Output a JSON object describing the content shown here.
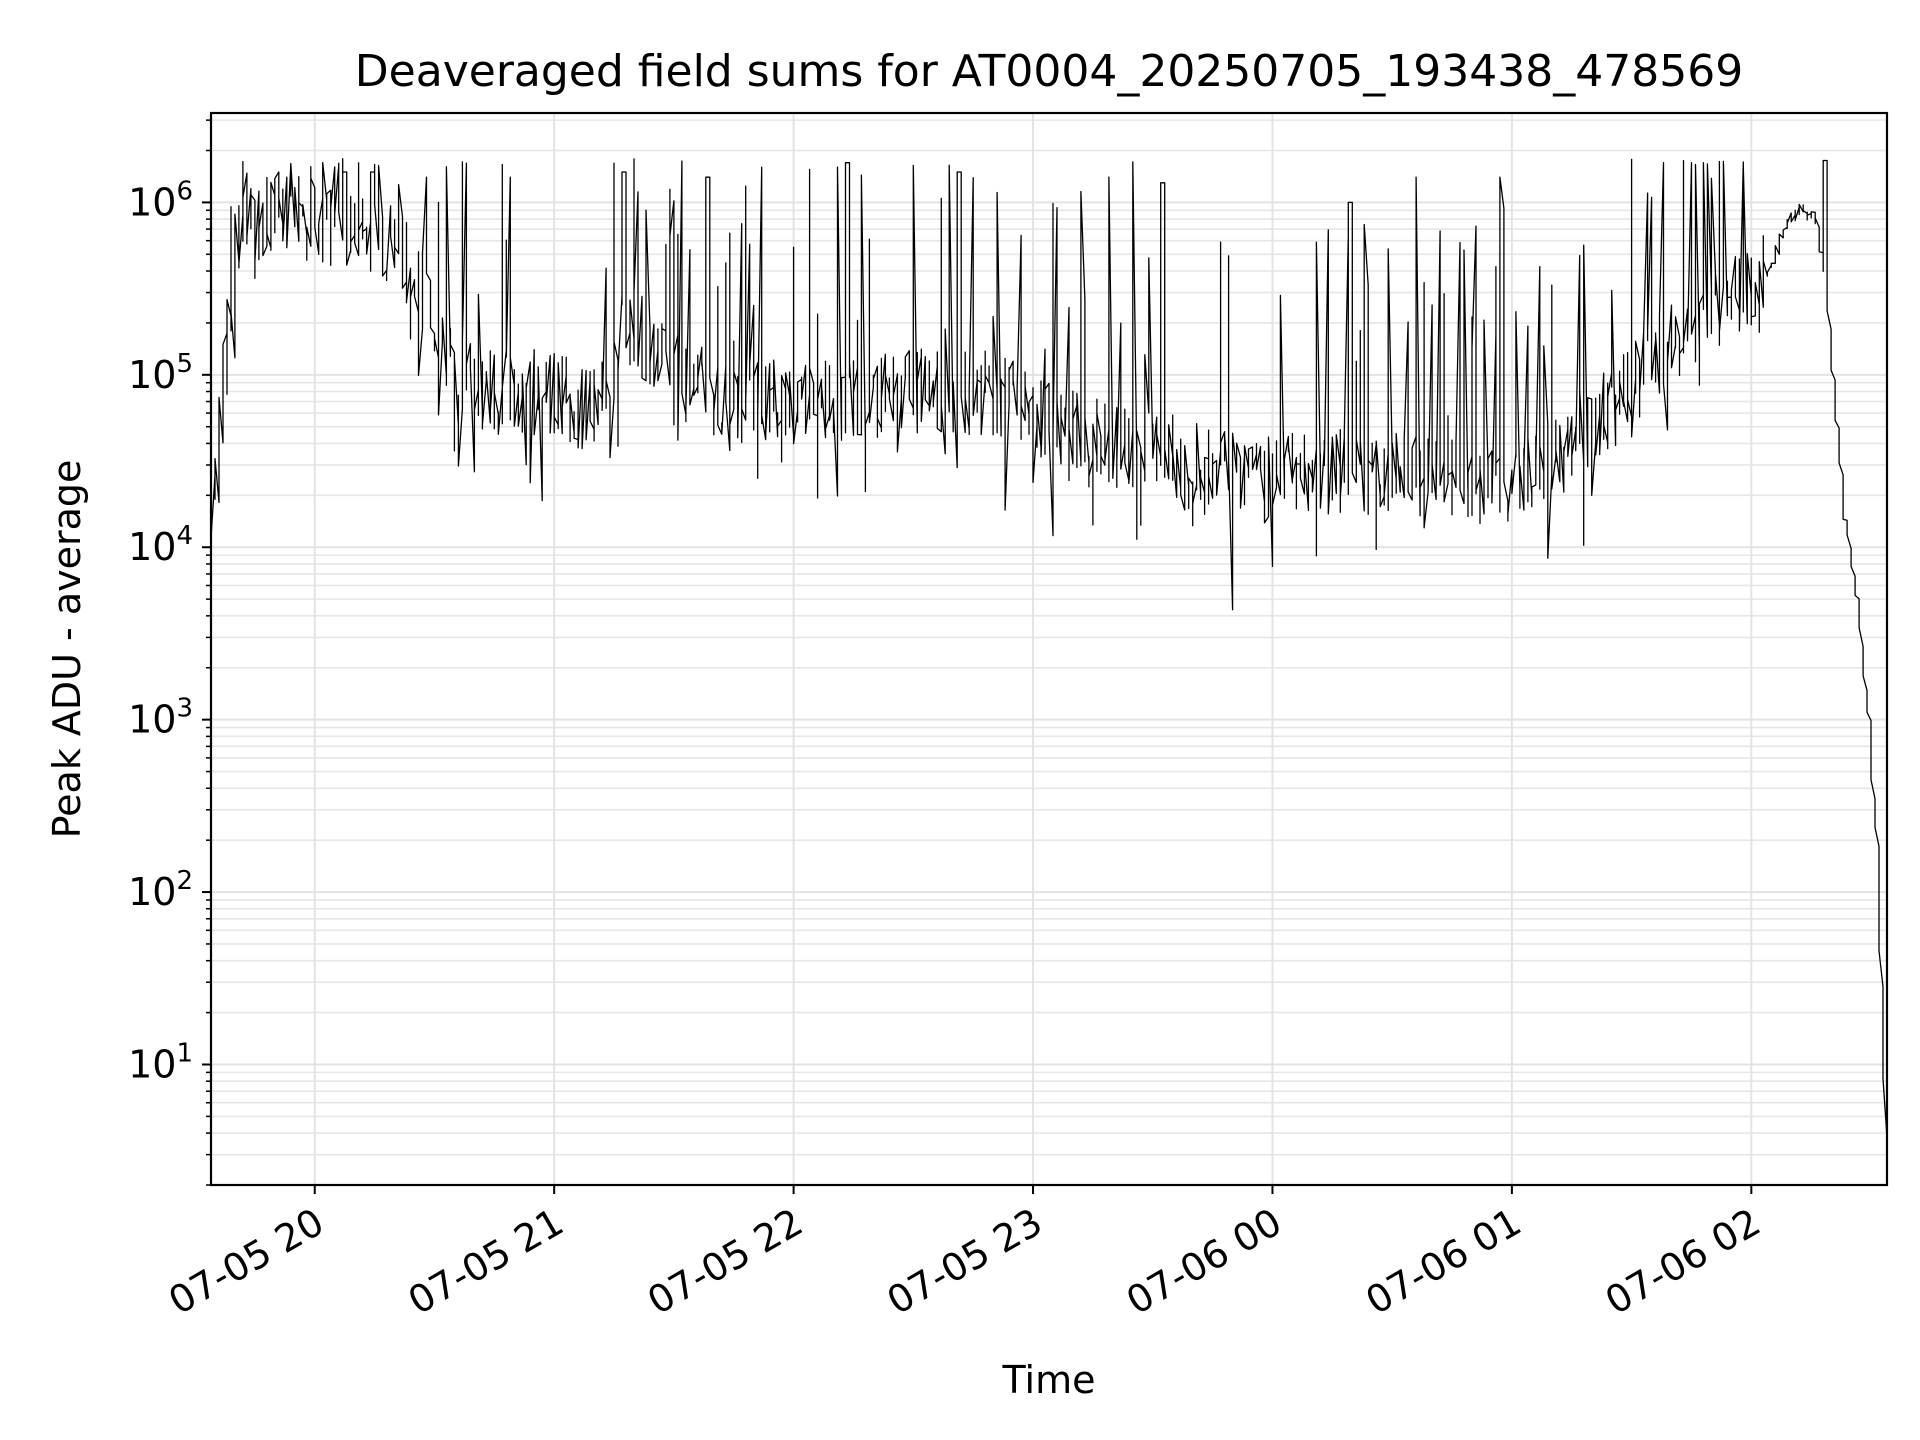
{
  "chart_data": {
    "type": "line",
    "title": "Deaveraged field sums for AT0004_20250705_193438_478569",
    "xlabel": "Time",
    "ylabel": "Peak ADU - average",
    "yscale": "log",
    "grid": true,
    "xlim": [
      "2025-07-05 19:34",
      "2025-07-06 02:34"
    ],
    "ylim": [
      2,
      3300000
    ],
    "x_ticks": [
      {
        "value": "2025-07-05 20:00",
        "label": "07-05 20"
      },
      {
        "value": "2025-07-05 21:00",
        "label": "07-05 21"
      },
      {
        "value": "2025-07-05 22:00",
        "label": "07-05 22"
      },
      {
        "value": "2025-07-05 23:00",
        "label": "07-05 23"
      },
      {
        "value": "2025-07-06 00:00",
        "label": "07-06 00"
      },
      {
        "value": "2025-07-06 01:00",
        "label": "07-06 01"
      },
      {
        "value": "2025-07-06 02:00",
        "label": "07-06 02"
      }
    ],
    "y_ticks": [
      {
        "value": 10,
        "base": "10",
        "exp": "1"
      },
      {
        "value": 100,
        "base": "10",
        "exp": "2"
      },
      {
        "value": 1000,
        "base": "10",
        "exp": "3"
      },
      {
        "value": 10000,
        "base": "10",
        "exp": "4"
      },
      {
        "value": 100000,
        "base": "10",
        "exp": "5"
      },
      {
        "value": 1000000,
        "base": "10",
        "exp": "6"
      }
    ],
    "series": [
      {
        "color": "#000000",
        "baseline_points": [
          [
            "2025-07-05 19:34",
            18000
          ],
          [
            "2025-07-05 19:36",
            20000
          ],
          [
            "2025-07-05 19:38",
            100000
          ],
          [
            "2025-07-05 19:40",
            400000
          ],
          [
            "2025-07-05 19:43",
            1000000
          ],
          [
            "2025-07-05 19:46",
            700000
          ],
          [
            "2025-07-05 19:50",
            900000
          ],
          [
            "2025-07-05 20:00",
            800000
          ],
          [
            "2025-07-05 20:10",
            700000
          ],
          [
            "2025-07-05 20:20",
            600000
          ],
          [
            "2025-07-05 20:28",
            300000
          ],
          [
            "2025-07-05 20:35",
            100000
          ],
          [
            "2025-07-05 20:45",
            80000
          ],
          [
            "2025-07-05 21:00",
            80000
          ],
          [
            "2025-07-05 21:10",
            60000
          ],
          [
            "2025-07-05 21:18",
            200000
          ],
          [
            "2025-07-05 21:24",
            150000
          ],
          [
            "2025-07-05 21:30",
            100000
          ],
          [
            "2025-07-05 21:45",
            70000
          ],
          [
            "2025-07-05 22:00",
            70000
          ],
          [
            "2025-07-05 22:15",
            70000
          ],
          [
            "2025-07-05 22:30",
            80000
          ],
          [
            "2025-07-05 22:50",
            80000
          ],
          [
            "2025-07-05 23:00",
            60000
          ],
          [
            "2025-07-05 23:10",
            50000
          ],
          [
            "2025-07-05 23:20",
            40000
          ],
          [
            "2025-07-05 23:30",
            35000
          ],
          [
            "2025-07-05 23:40",
            28000
          ],
          [
            "2025-07-06 00:00",
            25000
          ],
          [
            "2025-07-06 00:20",
            28000
          ],
          [
            "2025-07-06 00:40",
            25000
          ],
          [
            "2025-07-06 01:00",
            25000
          ],
          [
            "2025-07-06 01:10",
            35000
          ],
          [
            "2025-07-06 01:20",
            50000
          ],
          [
            "2025-07-06 01:30",
            80000
          ],
          [
            "2025-07-06 01:40",
            150000
          ],
          [
            "2025-07-06 01:50",
            250000
          ],
          [
            "2025-07-06 02:00",
            300000
          ],
          [
            "2025-07-06 02:05",
            400000
          ],
          [
            "2025-07-06 02:10",
            800000
          ],
          [
            "2025-07-06 02:13",
            900000
          ],
          [
            "2025-07-06 02:17",
            800000
          ],
          [
            "2025-07-06 02:20",
            200000
          ],
          [
            "2025-07-06 02:24",
            15000
          ],
          [
            "2025-07-06 02:27",
            5000
          ],
          [
            "2025-07-06 02:30",
            1000
          ],
          [
            "2025-07-06 02:32",
            200
          ],
          [
            "2025-07-06 02:33",
            40
          ],
          [
            "2025-07-06 02:34",
            4
          ]
        ],
        "peaks": [
          [
            "2025-07-05 19:51",
            1500000
          ],
          [
            "2025-07-05 19:53",
            1400000
          ],
          [
            "2025-07-05 20:05",
            1600000
          ],
          [
            "2025-07-05 20:08",
            1500000
          ],
          [
            "2025-07-05 20:15",
            1500000
          ],
          [
            "2025-07-05 20:28",
            1400000
          ],
          [
            "2025-07-05 20:49",
            1400000
          ],
          [
            "2025-07-05 21:18",
            1500000
          ],
          [
            "2025-07-05 21:39",
            1400000
          ],
          [
            "2025-07-05 21:52",
            1600000
          ],
          [
            "2025-07-05 22:12",
            1600000
          ],
          [
            "2025-07-05 22:14",
            1700000
          ],
          [
            "2025-07-05 22:42",
            1500000
          ],
          [
            "2025-07-05 23:20",
            1400000
          ],
          [
            "2025-07-05 23:33",
            1300000
          ],
          [
            "2025-07-06 00:20",
            1000000
          ],
          [
            "2025-07-06 00:37",
            1400000
          ],
          [
            "2025-07-06 00:58",
            1400000
          ],
          [
            "2025-07-06 01:38",
            1700000
          ],
          [
            "2025-07-06 01:45",
            1700000
          ],
          [
            "2025-07-06 01:49",
            1700000
          ],
          [
            "2025-07-06 02:19",
            1750000
          ]
        ]
      }
    ]
  }
}
